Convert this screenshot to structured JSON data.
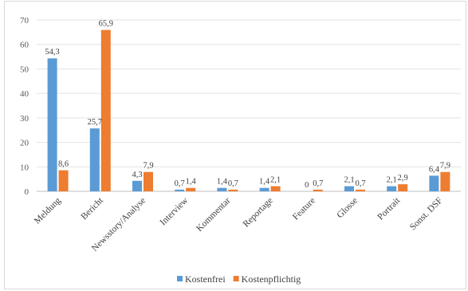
{
  "chart_data": {
    "type": "bar",
    "categories": [
      "Meldung",
      "Bericht",
      "Newsstory/Analyse",
      "Interview",
      "Kommentar",
      "Reportage",
      "Feature",
      "Glosse",
      "Portrait",
      "Sonst. DSF"
    ],
    "series": [
      {
        "name": "Kostenfrei",
        "color": "#5b9bd5",
        "values": [
          54.3,
          25.7,
          4.3,
          0.7,
          1.4,
          1.4,
          0,
          2.1,
          2.1,
          6.4
        ],
        "labels": [
          "54,3",
          "25,7",
          "4,3",
          "0,7",
          "1,4",
          "1,4",
          "0",
          "2,1",
          "2,1",
          "6,4"
        ]
      },
      {
        "name": "Kostenpflichtig",
        "color": "#ed7d31",
        "values": [
          8.6,
          65.9,
          7.9,
          1.4,
          0.7,
          2.1,
          0.7,
          0.7,
          2.9,
          7.9
        ],
        "labels": [
          "8,6",
          "65,9",
          "7,9",
          "1,4",
          "0,7",
          "2,1",
          "0,7",
          "0,7",
          "2,9",
          "7,9"
        ]
      }
    ],
    "yticks": [
      "0",
      "10",
      "20",
      "30",
      "40",
      "50",
      "60",
      "70"
    ],
    "ylim": [
      0,
      70
    ],
    "grid": true,
    "legend_position": "bottom"
  }
}
